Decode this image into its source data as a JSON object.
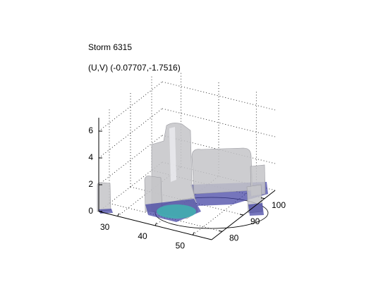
{
  "chart_data": {
    "type": "surface3d",
    "title": "Storm 6315",
    "subtitle": "(U,V) (-0.07707,-1.7516)",
    "xlim": [
      25,
      55
    ],
    "xticks": [
      30,
      40,
      50
    ],
    "ylim": [
      75,
      105
    ],
    "yticks": [
      80,
      90,
      100
    ],
    "zlim": [
      0,
      7
    ],
    "zticks": [
      0,
      2,
      4,
      6
    ],
    "grid": true
  }
}
